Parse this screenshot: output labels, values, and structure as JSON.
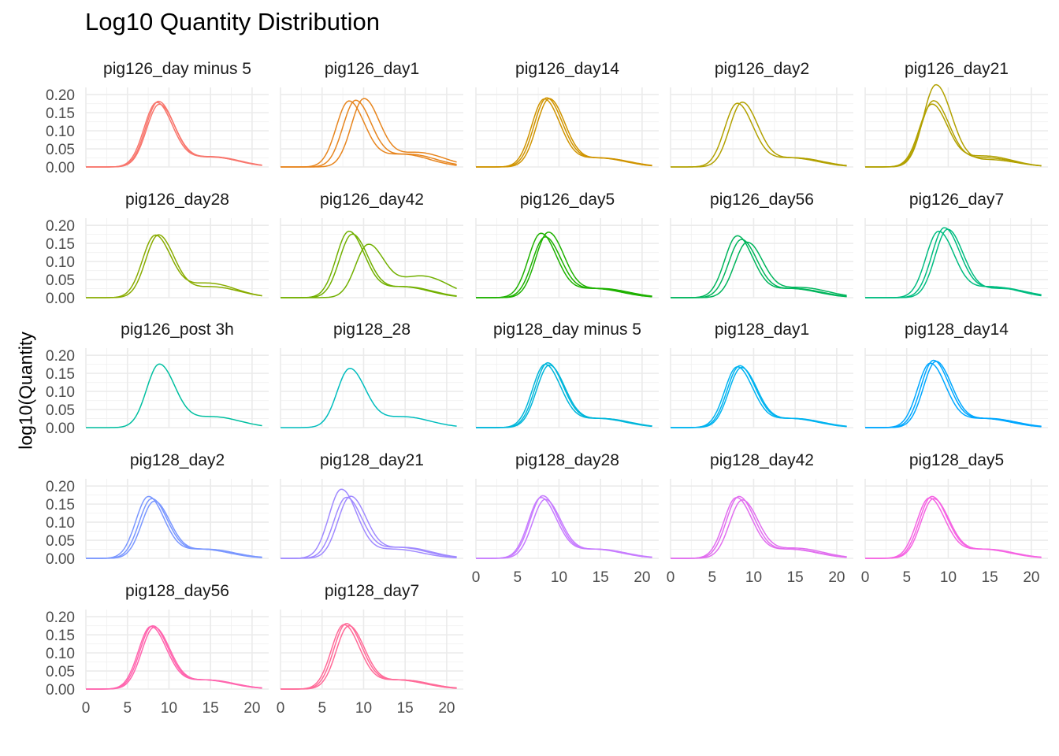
{
  "chart_data": {
    "type": "line",
    "title": "Log10 Quantity Distribution",
    "xlabel": "",
    "ylabel": "log10(Quantity",
    "xlim": [
      0,
      22
    ],
    "ylim": [
      0,
      0.22
    ],
    "x_ticks": [
      0,
      5,
      10,
      15,
      20
    ],
    "y_ticks": [
      0.0,
      0.05,
      0.1,
      0.15,
      0.2
    ],
    "y_tick_labels": [
      "0.00",
      "0.05",
      "0.10",
      "0.15",
      "0.20"
    ],
    "grid": true,
    "legend": "none",
    "layout": {
      "columns": 5,
      "rows": 5
    },
    "panels": [
      {
        "name": "pig126_day minus 5",
        "color": "#F8766D",
        "curves": [
          {
            "peak": 8.5,
            "height": 0.175,
            "tail": 0.028
          },
          {
            "peak": 8.8,
            "height": 0.17,
            "tail": 0.028
          },
          {
            "peak": 8.7,
            "height": 0.178,
            "tail": 0.027
          }
        ]
      },
      {
        "name": "pig126_day1",
        "color": "#E7851E",
        "curves": [
          {
            "peak": 8.2,
            "height": 0.178,
            "tail": 0.035
          },
          {
            "peak": 9.0,
            "height": 0.18,
            "tail": 0.035
          },
          {
            "peak": 10.0,
            "height": 0.184,
            "tail": 0.04
          }
        ]
      },
      {
        "name": "pig126_day14",
        "color": "#D09400",
        "curves": [
          {
            "peak": 8.2,
            "height": 0.185,
            "tail": 0.025
          },
          {
            "peak": 8.5,
            "height": 0.188,
            "tail": 0.025
          },
          {
            "peak": 8.8,
            "height": 0.186,
            "tail": 0.024
          }
        ]
      },
      {
        "name": "pig126_day2",
        "color": "#B2A100",
        "curves": [
          {
            "peak": 8.0,
            "height": 0.173,
            "tail": 0.025
          },
          {
            "peak": 8.6,
            "height": 0.176,
            "tail": 0.025
          }
        ]
      },
      {
        "name": "pig126_day21",
        "color": "#B2A100",
        "curves": [
          {
            "peak": 8.0,
            "height": 0.17,
            "tail": 0.03
          },
          {
            "peak": 8.2,
            "height": 0.18,
            "tail": 0.025
          },
          {
            "peak": 8.5,
            "height": 0.225,
            "tail": 0.02
          }
        ]
      },
      {
        "name": "pig126_day28",
        "color": "#89AC00",
        "curves": [
          {
            "peak": 8.3,
            "height": 0.168,
            "tail": 0.04
          },
          {
            "peak": 8.7,
            "height": 0.17,
            "tail": 0.03
          }
        ]
      },
      {
        "name": "pig126_day42",
        "color": "#72B000",
        "curves": [
          {
            "peak": 8.2,
            "height": 0.18,
            "tail": 0.03
          },
          {
            "peak": 8.6,
            "height": 0.172,
            "tail": 0.03
          },
          {
            "peak": 10.5,
            "height": 0.14,
            "tail": 0.06
          }
        ]
      },
      {
        "name": "pig126_day5",
        "color": "#1EB100",
        "curves": [
          {
            "peak": 7.8,
            "height": 0.175,
            "tail": 0.025
          },
          {
            "peak": 8.3,
            "height": 0.165,
            "tail": 0.025
          },
          {
            "peak": 8.7,
            "height": 0.178,
            "tail": 0.025
          }
        ]
      },
      {
        "name": "pig126_day56",
        "color": "#00B55C",
        "curves": [
          {
            "peak": 8.0,
            "height": 0.168,
            "tail": 0.025
          },
          {
            "peak": 8.5,
            "height": 0.158,
            "tail": 0.025
          },
          {
            "peak": 9.2,
            "height": 0.15,
            "tail": 0.028
          }
        ]
      },
      {
        "name": "pig126_day7",
        "color": "#00BC80",
        "curves": [
          {
            "peak": 8.8,
            "height": 0.18,
            "tail": 0.03
          },
          {
            "peak": 9.5,
            "height": 0.19,
            "tail": 0.028
          },
          {
            "peak": 9.9,
            "height": 0.186,
            "tail": 0.025
          }
        ]
      },
      {
        "name": "pig126_post 3h",
        "color": "#00BFA0",
        "curves": [
          {
            "peak": 8.8,
            "height": 0.172,
            "tail": 0.03
          }
        ]
      },
      {
        "name": "pig128_28",
        "color": "#00BDBE",
        "curves": [
          {
            "peak": 8.3,
            "height": 0.16,
            "tail": 0.03
          }
        ]
      },
      {
        "name": "pig128_day minus 5",
        "color": "#00B6DA",
        "curves": [
          {
            "peak": 8.3,
            "height": 0.172,
            "tail": 0.025
          },
          {
            "peak": 8.6,
            "height": 0.176,
            "tail": 0.025
          },
          {
            "peak": 8.8,
            "height": 0.17,
            "tail": 0.025
          }
        ]
      },
      {
        "name": "pig128_day1",
        "color": "#00B3F0",
        "curves": [
          {
            "peak": 8.0,
            "height": 0.165,
            "tail": 0.025
          },
          {
            "peak": 8.3,
            "height": 0.168,
            "tail": 0.025
          },
          {
            "peak": 8.5,
            "height": 0.163,
            "tail": 0.025
          }
        ]
      },
      {
        "name": "pig128_day14",
        "color": "#00A7FF",
        "curves": [
          {
            "peak": 7.8,
            "height": 0.175,
            "tail": 0.025
          },
          {
            "peak": 8.2,
            "height": 0.183,
            "tail": 0.025
          },
          {
            "peak": 8.5,
            "height": 0.18,
            "tail": 0.025
          }
        ]
      },
      {
        "name": "pig128_day2",
        "color": "#7A97FF",
        "curves": [
          {
            "peak": 7.5,
            "height": 0.168,
            "tail": 0.025
          },
          {
            "peak": 7.9,
            "height": 0.162,
            "tail": 0.025
          },
          {
            "peak": 8.2,
            "height": 0.155,
            "tail": 0.025
          }
        ]
      },
      {
        "name": "pig128_day21",
        "color": "#A08AFF",
        "curves": [
          {
            "peak": 7.3,
            "height": 0.188,
            "tail": 0.025
          },
          {
            "peak": 7.9,
            "height": 0.165,
            "tail": 0.03
          },
          {
            "peak": 8.4,
            "height": 0.168,
            "tail": 0.03
          }
        ]
      },
      {
        "name": "pig128_day28",
        "color": "#C77CFF",
        "curves": [
          {
            "peak": 7.8,
            "height": 0.165,
            "tail": 0.025
          },
          {
            "peak": 8.0,
            "height": 0.17,
            "tail": 0.025
          },
          {
            "peak": 8.3,
            "height": 0.16,
            "tail": 0.025
          }
        ]
      },
      {
        "name": "pig128_day42",
        "color": "#E16EEF",
        "curves": [
          {
            "peak": 7.9,
            "height": 0.165,
            "tail": 0.025
          },
          {
            "peak": 8.2,
            "height": 0.168,
            "tail": 0.025
          },
          {
            "peak": 8.6,
            "height": 0.158,
            "tail": 0.028
          }
        ]
      },
      {
        "name": "pig128_day5",
        "color": "#F564E3",
        "curves": [
          {
            "peak": 7.7,
            "height": 0.164,
            "tail": 0.025
          },
          {
            "peak": 8.0,
            "height": 0.168,
            "tail": 0.025
          },
          {
            "peak": 8.2,
            "height": 0.162,
            "tail": 0.025
          }
        ]
      },
      {
        "name": "pig128_day56",
        "color": "#FF65AE",
        "curves": [
          {
            "peak": 7.8,
            "height": 0.17,
            "tail": 0.025
          },
          {
            "peak": 8.0,
            "height": 0.172,
            "tail": 0.025
          },
          {
            "peak": 8.2,
            "height": 0.168,
            "tail": 0.025
          }
        ]
      },
      {
        "name": "pig128_day7",
        "color": "#FF6A98",
        "curves": [
          {
            "peak": 7.6,
            "height": 0.175,
            "tail": 0.025
          },
          {
            "peak": 7.9,
            "height": 0.178,
            "tail": 0.025
          },
          {
            "peak": 8.2,
            "height": 0.172,
            "tail": 0.025
          }
        ]
      }
    ]
  }
}
